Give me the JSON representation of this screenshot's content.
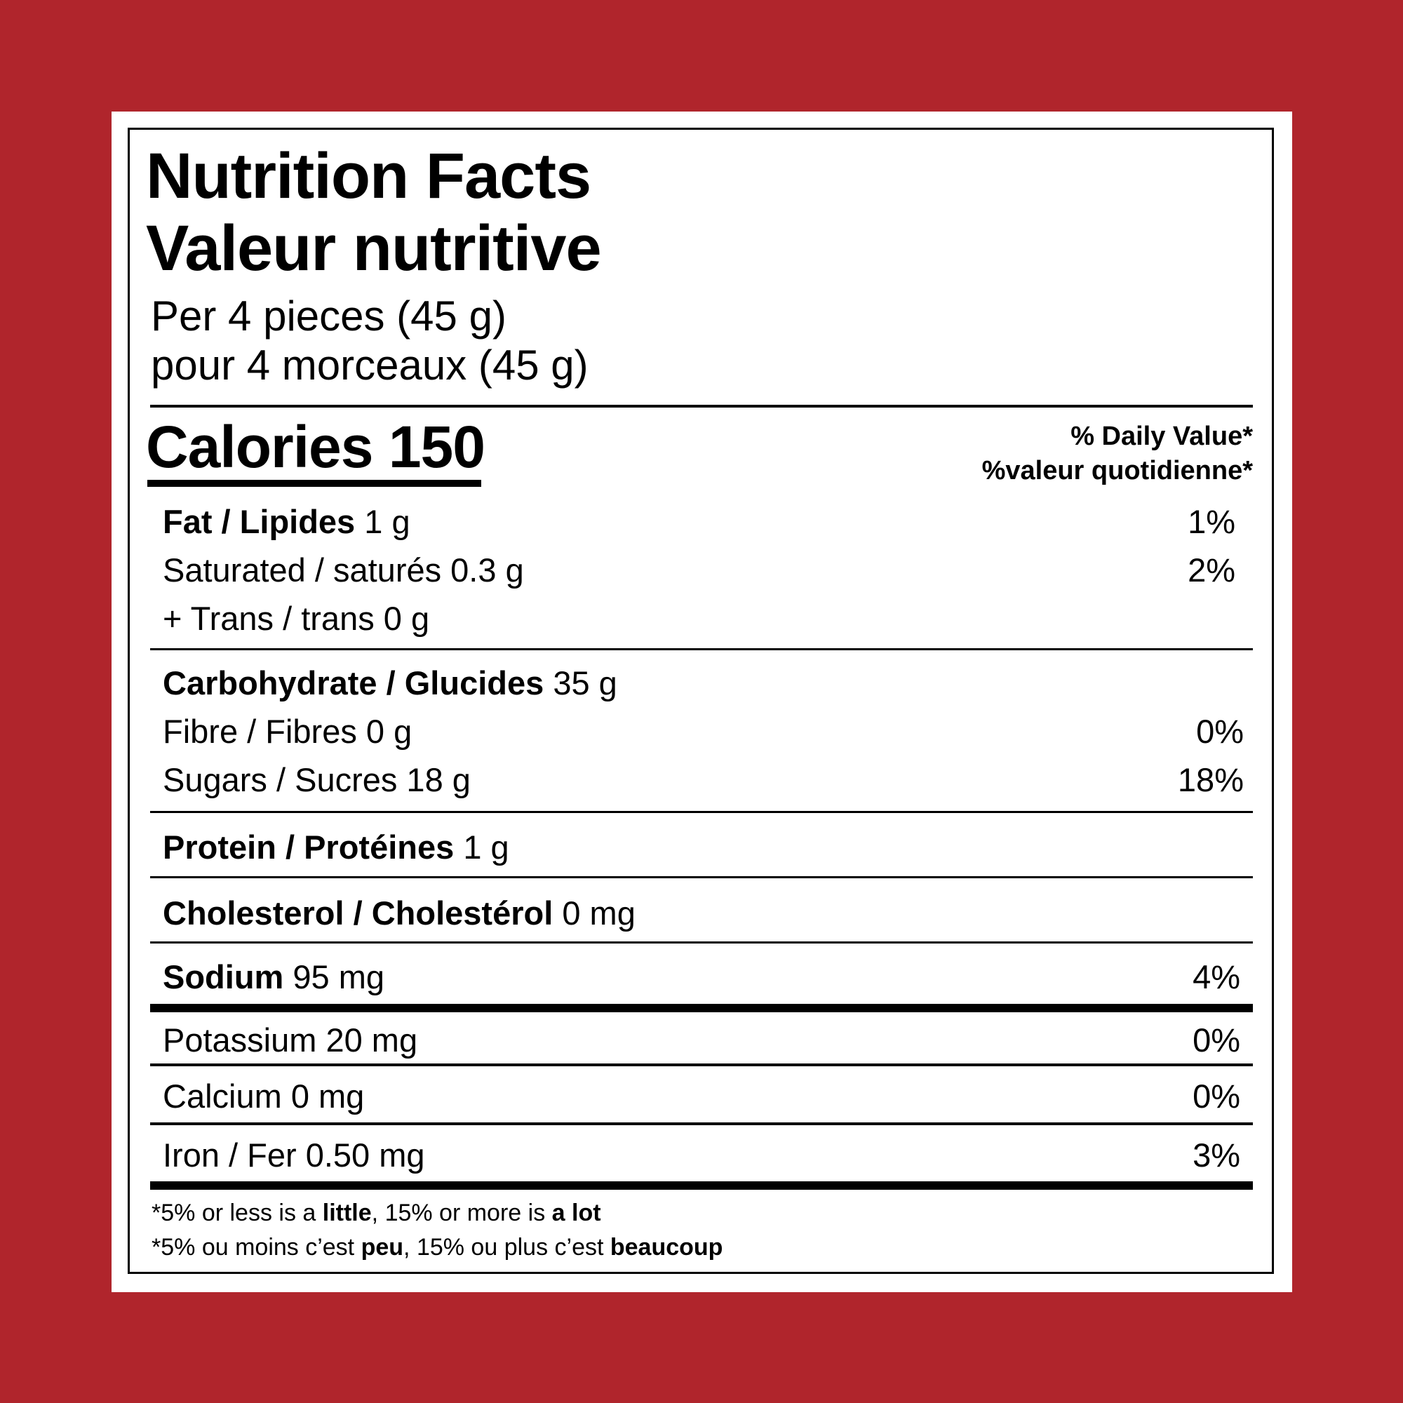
{
  "colors": {
    "background": "#b0252c",
    "label_bg": "#ffffff",
    "text": "#000000"
  },
  "header": {
    "title_en": "Nutrition Facts",
    "title_fr": "Valeur nutritive",
    "serving_en": "Per 4 pieces (45 g)",
    "serving_fr": "pour 4 morceaux (45 g)"
  },
  "calories": {
    "label": "Calories 150"
  },
  "daily_value": {
    "en": "% Daily Value*",
    "fr": "%valeur quotidienne*"
  },
  "rows": [
    {
      "label": "Fat / Lipides",
      "amount": " 1 g",
      "dv": "1%"
    },
    {
      "label": "Saturated / saturés 0.3 g",
      "amount": "",
      "dv": "2%"
    },
    {
      "label": "+ Trans / trans 0 g",
      "amount": "",
      "dv": ""
    },
    {
      "label": "Carbohydrate / Glucides",
      "amount": " 35 g",
      "dv": ""
    },
    {
      "label": "Fibre / Fibres 0 g",
      "amount": "",
      "dv": "0%"
    },
    {
      "label": "Sugars / Sucres 18 g",
      "amount": "",
      "dv": "18%"
    },
    {
      "label": "Protein / Protéines",
      "amount": " 1 g",
      "dv": ""
    },
    {
      "label": "Cholesterol / Cholestérol",
      "amount": " 0 mg",
      "dv": ""
    },
    {
      "label": "Sodium",
      "amount": " 95 mg",
      "dv": "4%"
    },
    {
      "label": "Potassium 20 mg",
      "amount": "",
      "dv": "0%"
    },
    {
      "label": "Calcium 0 mg",
      "amount": "",
      "dv": "0%"
    },
    {
      "label": "Iron / Fer 0.50 mg",
      "amount": "",
      "dv": "3%"
    }
  ],
  "footnote": {
    "en": {
      "a": "*5% or less is a ",
      "b": "little",
      "c": ", 15% or more is ",
      "d": "a lot"
    },
    "fr": {
      "a": "*5% ou moins c’est ",
      "b": "peu",
      "c": ", 15% ou plus c’est ",
      "d": "beaucoup"
    }
  }
}
